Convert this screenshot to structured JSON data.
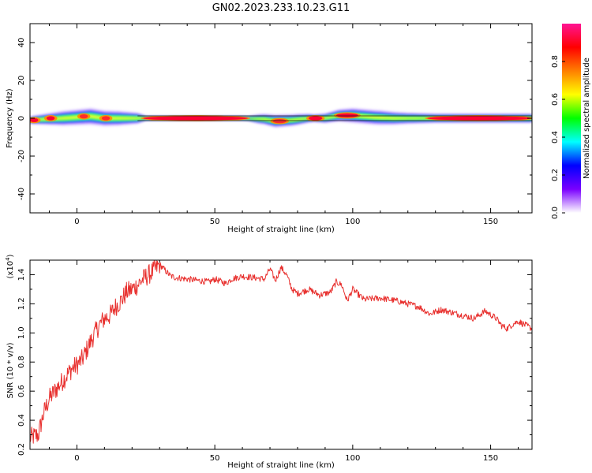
{
  "title": "GN02.2023.233.10.23.G11",
  "colors": {
    "snr_line": "#e8302e",
    "axis": "#000000",
    "background": "#ffffff"
  },
  "chart_data": [
    {
      "type": "heatmap",
      "name": "spectrogram",
      "title": "GN02.2023.233.10.23.G11",
      "xlabel": "Height of straight line (km)",
      "ylabel": "Frequency (Hz)",
      "xlim": [
        -17,
        165
      ],
      "ylim": [
        -50,
        50
      ],
      "xticks": [
        0,
        50,
        100,
        150
      ],
      "xtick_labels": [
        "0",
        "50",
        "100",
        "150"
      ],
      "yticks": [
        -40,
        -20,
        0,
        20,
        40
      ],
      "ytick_labels": [
        "-40",
        "-20",
        "0",
        "20",
        "40"
      ],
      "colorbar": {
        "label": "Normalized spectral amplitude",
        "range": [
          0,
          1
        ],
        "ticks": [
          0.0,
          0.2,
          0.4,
          0.6,
          0.8
        ],
        "tick_labels": [
          "0.0",
          "0.2",
          "0.4",
          "0.6",
          "0.8"
        ],
        "colormap": [
          "#ffffff",
          "#7a00ff",
          "#0000ff",
          "#00ffff",
          "#00ff00",
          "#ffff00",
          "#ff7f00",
          "#ff0000",
          "#ff1493"
        ]
      },
      "band": {
        "center_hz": [
          [
            -17,
            -1
          ],
          [
            -5,
            0
          ],
          [
            5,
            1
          ],
          [
            10,
            0
          ],
          [
            22,
            0
          ],
          [
            40,
            0
          ],
          [
            60,
            0
          ],
          [
            68,
            -0.5
          ],
          [
            72,
            -1.5
          ],
          [
            78,
            -1
          ],
          [
            84,
            0
          ],
          [
            90,
            0
          ],
          [
            95,
            1.5
          ],
          [
            100,
            1.5
          ],
          [
            108,
            0.5
          ],
          [
            115,
            0
          ],
          [
            130,
            0
          ],
          [
            165,
            0
          ]
        ],
        "halfwidth_hz": [
          [
            -17,
            2
          ],
          [
            -5,
            4
          ],
          [
            5,
            4.5
          ],
          [
            15,
            4
          ],
          [
            22,
            3
          ],
          [
            25,
            1.2
          ],
          [
            62,
            1.2
          ],
          [
            66,
            2.5
          ],
          [
            72,
            3.5
          ],
          [
            80,
            3
          ],
          [
            86,
            2
          ],
          [
            93,
            3
          ],
          [
            100,
            4
          ],
          [
            110,
            4
          ],
          [
            120,
            3
          ],
          [
            130,
            2.5
          ],
          [
            165,
            2.5
          ]
        ],
        "hotspots": [
          {
            "x": [
              -17,
              -14
            ],
            "y": -1,
            "intensity": 0.95
          },
          {
            "x": [
              -11,
              -8
            ],
            "y": 0,
            "intensity": 0.9
          },
          {
            "x": [
              1,
              4
            ],
            "y": 1,
            "intensity": 0.7
          },
          {
            "x": [
              9,
              12
            ],
            "y": 0,
            "intensity": 0.85
          },
          {
            "x": [
              24,
              62
            ],
            "y": 0,
            "intensity": 0.95
          },
          {
            "x": [
              71,
              76
            ],
            "y": -1.5,
            "intensity": 0.85
          },
          {
            "x": [
              84,
              89
            ],
            "y": 0,
            "intensity": 0.9
          },
          {
            "x": [
              94,
              102
            ],
            "y": 1.5,
            "intensity": 0.95
          },
          {
            "x": [
              127,
              165
            ],
            "y": 0,
            "intensity": 0.9
          }
        ]
      }
    },
    {
      "type": "line",
      "name": "snr",
      "xlabel": "Height of straight line (km)",
      "ylabel": "SNR (10 * v/v)",
      "scale_label": "(x10^4)",
      "xlim": [
        -17,
        165
      ],
      "ylim": [
        0.2,
        1.5
      ],
      "xticks": [
        0,
        50,
        100,
        150
      ],
      "xtick_labels": [
        "0",
        "50",
        "100",
        "150"
      ],
      "yticks": [
        0.2,
        0.4,
        0.6,
        0.8,
        1.0,
        1.2,
        1.4
      ],
      "ytick_labels": [
        "0.2",
        "0.4",
        "0.6",
        "0.8",
        "1.0",
        "1.2",
        "1.4"
      ],
      "series": [
        {
          "name": "SNR",
          "x": [
            -17,
            -14,
            -12,
            -10,
            -8,
            -6,
            -4,
            -2,
            0,
            2,
            4,
            6,
            8,
            10,
            12,
            14,
            16,
            18,
            20,
            22,
            24,
            26,
            28,
            30,
            32,
            34,
            36,
            40,
            44,
            48,
            50,
            54,
            56,
            60,
            64,
            68,
            70,
            72,
            74,
            76,
            78,
            80,
            84,
            88,
            92,
            94,
            96,
            98,
            100,
            104,
            110,
            116,
            120,
            124,
            128,
            132,
            136,
            140,
            144,
            148,
            152,
            154,
            156,
            158,
            160,
            162,
            165
          ],
          "values": [
            0.28,
            0.3,
            0.45,
            0.55,
            0.6,
            0.65,
            0.7,
            0.75,
            0.78,
            0.82,
            0.9,
            0.98,
            1.05,
            1.1,
            1.12,
            1.18,
            1.22,
            1.28,
            1.3,
            1.33,
            1.37,
            1.4,
            1.43,
            1.47,
            1.43,
            1.39,
            1.38,
            1.37,
            1.36,
            1.35,
            1.37,
            1.34,
            1.37,
            1.39,
            1.38,
            1.37,
            1.44,
            1.36,
            1.45,
            1.4,
            1.3,
            1.27,
            1.3,
            1.26,
            1.28,
            1.35,
            1.33,
            1.22,
            1.3,
            1.23,
            1.24,
            1.22,
            1.2,
            1.18,
            1.13,
            1.16,
            1.14,
            1.12,
            1.1,
            1.15,
            1.1,
            1.05,
            1.03,
            1.06,
            1.08,
            1.06,
            1.03
          ]
        }
      ]
    }
  ]
}
